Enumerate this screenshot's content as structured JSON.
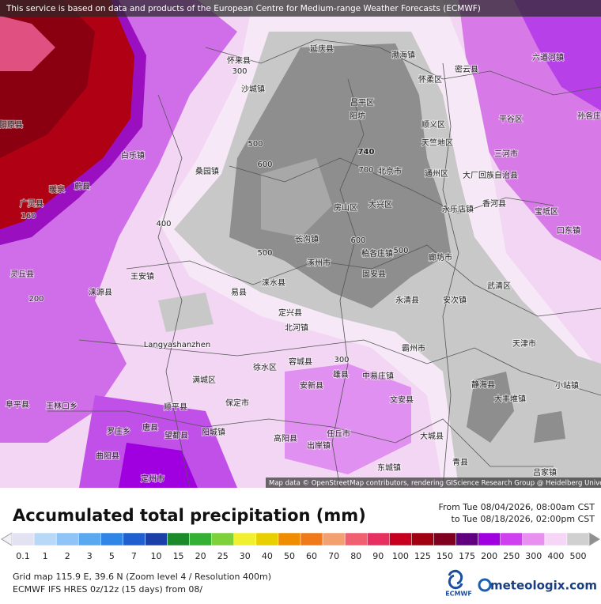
{
  "banner": "This service is based on data and products of the European Centre for Medium-range Weather Forecasts (ECMWF)",
  "map": {
    "labels": [
      "延庆县",
      "渤海镇",
      "怀来县",
      "300",
      "怀柔区",
      "密云县",
      "六道河镇",
      "沙城镇",
      "昌平区",
      "阳坊",
      "顺义区",
      "平谷区",
      "孙各庄",
      "阳原县",
      "白乐镇",
      "蔚县",
      "暖泉",
      "广灵县",
      "160",
      "灵丘县",
      "200",
      "桑园镇",
      "740",
      "700",
      "600",
      "500",
      "北京市",
      "天竺地区",
      "三河市",
      "通州区",
      "大厂回族自治县",
      "房山区",
      "大兴区",
      "永乐店镇",
      "香河县",
      "宝坻区",
      "口东镇",
      "400",
      "长沟镇",
      "500",
      "600",
      "500",
      "涿州市",
      "柏各庄镇",
      "固安县",
      "廊坊市",
      "王安镇",
      "涞源县",
      "易县",
      "涞水县",
      "永清县",
      "武清区",
      "安次镇",
      "定兴县",
      "北河镇",
      "Langyashanzhen",
      "300",
      "霸州市",
      "天津市",
      "徐水区",
      "容城县",
      "雄县",
      "满城区",
      "安新县",
      "中易庄镇",
      "静海县",
      "大丰堆镇",
      "小站镇",
      "阜平县",
      "王林口乡",
      "顺平县",
      "保定市",
      "文安县",
      "罗庄乡",
      "唐县",
      "望都县",
      "阳城镇",
      "高阳县",
      "任丘市",
      "大城县",
      "曲阳县",
      "出岸镇",
      "青县",
      "定州市",
      "东城镇",
      "吕家镇"
    ],
    "attribution": "Map data © OpenStreetMap contributors, rendering GIScience Research Group @ Heidelberg University"
  },
  "legend": {
    "title": "Accumulated total precipitation (mm)",
    "period_from": "From Tue 08/04/2026, 08:00am CST",
    "period_to": "to Tue 08/18/2026, 02:00pm CST",
    "levels": [
      0.1,
      1,
      2,
      3,
      5,
      7,
      10,
      15,
      20,
      25,
      30,
      40,
      50,
      60,
      70,
      80,
      90,
      100,
      125,
      150,
      175,
      200,
      250,
      300,
      400,
      500
    ],
    "colors": [
      "#e2e2f2",
      "#b8d8f8",
      "#90c4f8",
      "#5aa8f0",
      "#2f86e6",
      "#1f5fcf",
      "#1a3fa8",
      "#1b8a2a",
      "#34b034",
      "#7ed13a",
      "#f0f030",
      "#e8d000",
      "#f08c00",
      "#f07a1a",
      "#f3a070",
      "#f06070",
      "#e83060",
      "#c80020",
      "#a00010",
      "#800020",
      "#600080",
      "#a000e0",
      "#d040f0",
      "#e890f0",
      "#f6d6f6",
      "#d0d0d0"
    ]
  },
  "footer": {
    "grid": "Grid map 115.9 E, 39.6 N (Zoom level 4 / Resolution 400m)",
    "model": "ECMWF IFS HRES 0z/12z (15 days) from 08/",
    "ecmwf": "ECMWF",
    "brand": "meteologix.com"
  }
}
